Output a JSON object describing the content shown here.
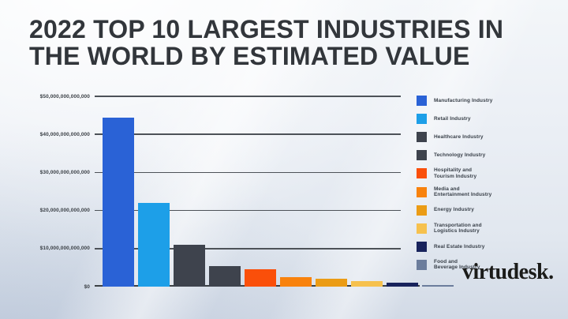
{
  "title": {
    "line1": "2022 TOP 10 LARGEST INDUSTRIES IN",
    "line2": "THE WORLD BY ESTIMATED VALUE"
  },
  "brand": {
    "name": "virtudesk",
    "mark": "."
  },
  "chart_data": {
    "type": "bar",
    "title": "2022 Top 10 Largest Industries in the World by Estimated Value",
    "unit": "USD",
    "categories": [
      "Manufacturing Industry",
      "Retail Industry",
      "Healthcare Industry",
      "Technology Industry",
      "Hospitality and Tourism Industry",
      "Media and Entertainment Industry",
      "Energy Industry",
      "Transportation and Logistics Industry",
      "Real Estate Industry",
      "Food and Beverage Industry"
    ],
    "values_trillions_usd": [
      44.5,
      22,
      11,
      5.5,
      4.5,
      2.5,
      2,
      1.5,
      1,
      0.5
    ],
    "bar_colors": [
      "#2a62d6",
      "#1d9fe8",
      "#3e434d",
      "#3e434d",
      "#fa4f0a",
      "#f8820d",
      "#eb9c15",
      "#f6c14e",
      "#18235c",
      "#6c7d9c"
    ],
    "legend_labels": [
      "Manufacturing Industry",
      "Retail Industry",
      "Healthcare Industry",
      "Technology Industry",
      "Hospitality and\nTourism Industry",
      "Media and\nEntertainment Industry",
      "Energy Industry",
      "Transportation and\nLogistics Industry",
      "Real Estate Industry",
      "Food and\nBeverage Industry"
    ],
    "y_axis": {
      "tick_labels": [
        "$50,000,000,000,000",
        "$40,000,000,000,000",
        "$30,000,000,000,000",
        "$20,000,000,000,000",
        "$10,000,000,000,000",
        "$0"
      ],
      "min_trillions": 0,
      "max_trillions": 50
    },
    "grid": true,
    "legend_position": "right"
  }
}
